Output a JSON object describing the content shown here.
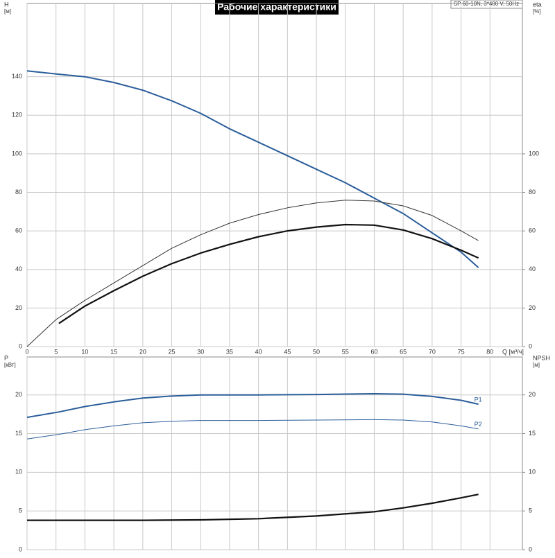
{
  "chart_data": [
    {
      "type": "line",
      "title": "Рабочие характеристики",
      "subtitle": "SP 60-10N, 3*400 V, 50Hz",
      "xlabel": "Q [м³/ч]",
      "ylabel": "H",
      "yunit": "[м]",
      "y2label": "eta",
      "y2unit": "[%]",
      "xlim": [
        0,
        85.6
      ],
      "xticks": [
        0,
        5,
        10,
        15,
        20,
        25,
        30,
        35,
        40,
        45,
        50,
        55,
        60,
        65,
        70,
        75,
        80
      ],
      "ylim": [
        0,
        178
      ],
      "yticks": [
        0,
        20,
        40,
        60,
        80,
        100,
        120,
        140
      ],
      "y2lim": [
        0,
        178
      ],
      "y2ticks": [
        0,
        20,
        40,
        60,
        80,
        100
      ],
      "grid": true,
      "series": [
        {
          "color": "#2a5d9a",
          "line_width": 2,
          "x": [
            0,
            5.5,
            10,
            15,
            20,
            25,
            30,
            35,
            40,
            45,
            50,
            55,
            60,
            65,
            70,
            75,
            78
          ],
          "values": [
            143,
            141.3,
            140,
            137,
            133,
            127.5,
            121,
            113,
            106,
            99,
            92,
            85,
            77,
            69,
            59,
            49,
            41
          ]
        },
        {
          "color": "#333333",
          "line_width": 1,
          "axis": "y2",
          "x": [
            0,
            5,
            10,
            15,
            20,
            25,
            30,
            35,
            40,
            45,
            50,
            55,
            60,
            65,
            70,
            75,
            78
          ],
          "values": [
            0,
            14,
            24,
            33,
            42,
            51,
            58,
            64,
            68.5,
            72,
            74.5,
            76,
            75.5,
            73,
            68,
            60,
            55
          ]
        },
        {
          "color": "#111111",
          "line_width": 2.2,
          "axis": "y2",
          "x": [
            5.5,
            10,
            15,
            20,
            25,
            30,
            35,
            40,
            45,
            50,
            55,
            60,
            65,
            70,
            75,
            78
          ],
          "values": [
            12,
            21,
            29,
            36.5,
            43,
            48.5,
            53,
            57,
            60,
            62,
            63.3,
            63,
            60.5,
            56,
            50,
            46
          ]
        }
      ]
    },
    {
      "type": "line",
      "ylabel": "P",
      "yunit": "[кВт]",
      "y2label": "NPSH",
      "y2unit": "[м]",
      "ylim": [
        0,
        24.9
      ],
      "yticks": [
        0,
        5,
        10,
        15,
        20
      ],
      "y2lim": [
        0,
        24.9
      ],
      "y2ticks": [
        0,
        5,
        10,
        15,
        20
      ],
      "grid": true,
      "series": [
        {
          "name": "P1",
          "color": "#2a5d9a",
          "line_width": 2,
          "x": [
            0,
            5.5,
            10,
            15,
            20,
            25,
            30,
            40,
            50,
            60,
            65,
            70,
            75,
            78
          ],
          "values": [
            17.1,
            17.8,
            18.5,
            19.1,
            19.6,
            19.85,
            20,
            20,
            20.05,
            20.15,
            20.1,
            19.8,
            19.3,
            18.8
          ]
        },
        {
          "name": "P2",
          "color": "#2a5d9a",
          "line_width": 1,
          "x": [
            0,
            5.5,
            10,
            15,
            20,
            25,
            30,
            40,
            50,
            60,
            65,
            70,
            75,
            78
          ],
          "values": [
            14.3,
            14.9,
            15.5,
            16,
            16.4,
            16.6,
            16.7,
            16.7,
            16.75,
            16.8,
            16.75,
            16.5,
            16,
            15.6
          ]
        },
        {
          "color": "#111111",
          "line_width": 2.2,
          "axis": "y2",
          "x": [
            0,
            5.5,
            10,
            20,
            30,
            40,
            50,
            60,
            65,
            70,
            75,
            78
          ],
          "values": [
            3.8,
            3.8,
            3.8,
            3.8,
            3.85,
            4.0,
            4.35,
            4.9,
            5.4,
            6,
            6.7,
            7.15
          ]
        }
      ]
    }
  ]
}
